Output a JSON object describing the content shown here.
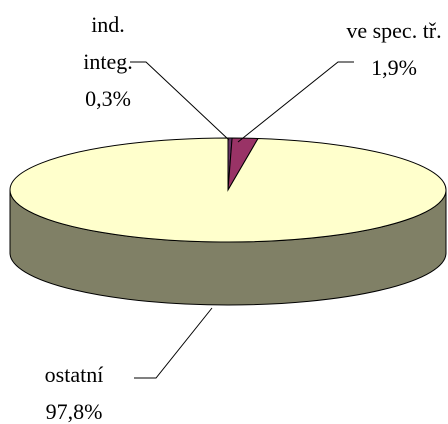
{
  "chart_data": {
    "type": "pie3d",
    "categories": [
      "ind. integ.",
      "ve spec. tř.",
      "ostatní"
    ],
    "values": [
      0.3,
      1.9,
      97.8
    ],
    "value_labels": [
      "0,3%",
      "1,9%",
      "97,8%"
    ],
    "colors": [
      "#663366",
      "#993366",
      "#ffffcc"
    ],
    "side_colors": [
      "#331a33",
      "#4d1a33",
      "#808066"
    ]
  }
}
